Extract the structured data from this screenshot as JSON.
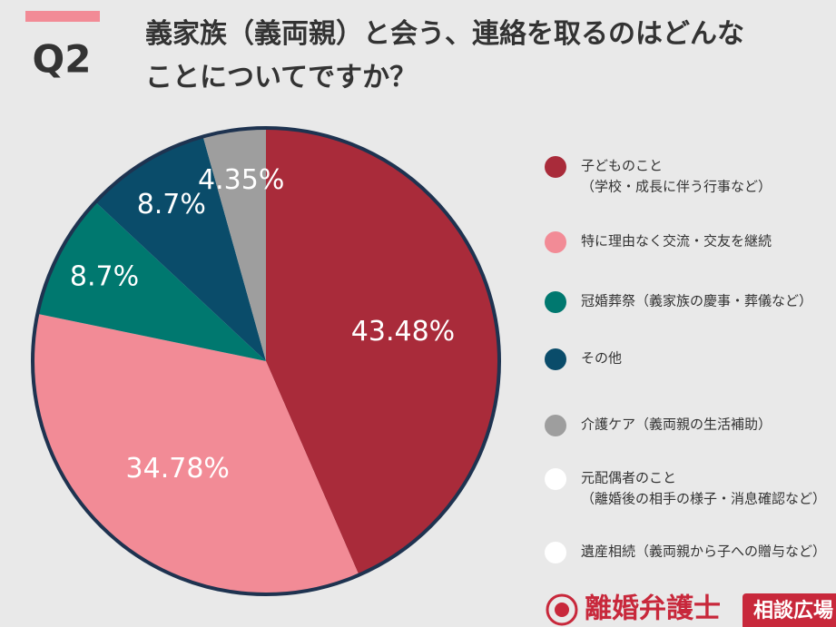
{
  "badge": "Q2",
  "chart_data": {
    "type": "pie",
    "title": "義家族（義両親）と会う、連絡を取るのはどんなことについてですか？",
    "categories": [
      [
        "子どものこと",
        "（学校・成長に伴う行事など）"
      ],
      [
        "特に理由なく交流・交友を継続"
      ],
      [
        "冠婚葬祭（義家族の慶事・葬儀など）"
      ],
      [
        "その他"
      ],
      [
        "介護ケア（義両親の生活補助）"
      ],
      [
        "元配偶者のこと",
        "（離婚後の相手の様子・消息確認など）"
      ],
      [
        "遺産相続（義両親から子への贈与など）"
      ]
    ],
    "values": [
      43.48,
      34.78,
      8.7,
      8.7,
      4.35,
      0,
      0
    ],
    "value_labels": [
      "43.48%",
      "34.78%",
      "8.7%",
      "8.7%",
      "4.35%",
      null,
      null
    ],
    "colors": [
      "#a92b3a",
      "#f28b96",
      "#00786f",
      "#0a4c6a",
      "#9e9e9e",
      "#ffffff",
      "#ffffff"
    ]
  },
  "brand": {
    "name": "離婚弁護士",
    "tag": "相談広場"
  }
}
